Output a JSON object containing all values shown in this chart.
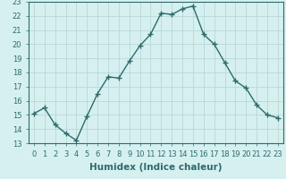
{
  "x": [
    0,
    1,
    2,
    3,
    4,
    5,
    6,
    7,
    8,
    9,
    10,
    11,
    12,
    13,
    14,
    15,
    16,
    17,
    18,
    19,
    20,
    21,
    22,
    23
  ],
  "y": [
    15.1,
    15.5,
    14.3,
    13.7,
    13.2,
    14.9,
    16.5,
    17.7,
    17.6,
    18.8,
    19.9,
    20.7,
    22.2,
    22.1,
    22.5,
    22.7,
    20.7,
    20.0,
    18.7,
    17.4,
    16.9,
    15.7,
    15.0,
    14.8
  ],
  "line_color": "#2e6b6b",
  "marker": "+",
  "marker_size": 4,
  "bg_color": "#c8e8e8",
  "plot_bg_color": "#d6f0f0",
  "grid_color": "#b8d8d8",
  "xlabel": "Humidex (Indice chaleur)",
  "xlim": [
    -0.5,
    23.5
  ],
  "ylim": [
    13,
    23
  ],
  "xticks": [
    0,
    1,
    2,
    3,
    4,
    5,
    6,
    7,
    8,
    9,
    10,
    11,
    12,
    13,
    14,
    15,
    16,
    17,
    18,
    19,
    20,
    21,
    22,
    23
  ],
  "yticks": [
    13,
    14,
    15,
    16,
    17,
    18,
    19,
    20,
    21,
    22,
    23
  ],
  "tick_label_fontsize": 6,
  "xlabel_fontsize": 7.5,
  "line_width": 1.0
}
